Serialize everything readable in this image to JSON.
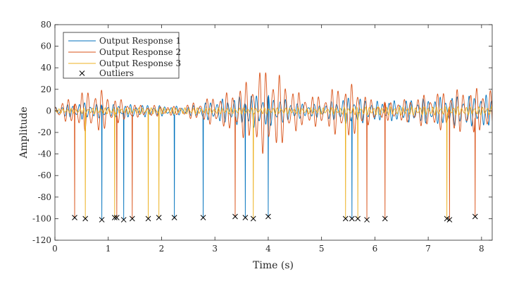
{
  "chart_data": {
    "type": "line",
    "title": "",
    "xlabel": "Time (s)",
    "ylabel": "Amplitude",
    "xlim": [
      0,
      8.2
    ],
    "ylim": [
      -120,
      80
    ],
    "xticks": [
      0,
      1,
      2,
      3,
      4,
      5,
      6,
      7,
      8
    ],
    "yticks": [
      -120,
      -100,
      -80,
      -60,
      -40,
      -20,
      0,
      20,
      40,
      60,
      80
    ],
    "xtick_labels": [
      "0",
      "1",
      "2",
      "3",
      "4",
      "5",
      "6",
      "7",
      "8"
    ],
    "ytick_labels": [
      "-120",
      "-100",
      "-80",
      "-60",
      "-40",
      "-20",
      "0",
      "20",
      "40",
      "60",
      "80"
    ],
    "grid": false,
    "legend_position": "top-left",
    "series": [
      {
        "name": "Output Response 1",
        "color": "#0072BD",
        "envelope": {
          "t": [
            0,
            0.5,
            1.0,
            1.5,
            2.0,
            2.5,
            3.0,
            3.5,
            3.8,
            4.0,
            4.3,
            4.6,
            5.0,
            5.4,
            5.6,
            6.0,
            6.5,
            7.0,
            7.5,
            8.2
          ],
          "amp": [
            4,
            8,
            6,
            6,
            5,
            4,
            10,
            14,
            16,
            15,
            11,
            7,
            6,
            12,
            13,
            9,
            10,
            12,
            14,
            15
          ]
        },
        "frequency_hz": 9.3,
        "phase": 0.3
      },
      {
        "name": "Output Response 2",
        "color": "#D95319",
        "envelope": {
          "t": [
            0,
            0.3,
            0.5,
            0.8,
            1.0,
            1.5,
            2.0,
            2.3,
            2.6,
            3.0,
            3.3,
            3.6,
            3.8,
            4.0,
            4.3,
            4.6,
            5.0,
            5.3,
            5.6,
            6.0,
            6.5,
            7.0,
            7.5,
            8.2
          ],
          "amp": [
            6,
            12,
            18,
            22,
            15,
            6,
            5,
            4,
            8,
            14,
            18,
            28,
            38,
            42,
            30,
            16,
            14,
            24,
            25,
            8,
            10,
            16,
            20,
            22
          ]
        },
        "frequency_hz": 8.1,
        "phase": 1.1
      },
      {
        "name": "Output Response 3",
        "color": "#EDB120",
        "envelope": {
          "t": [
            0,
            1.0,
            2.0,
            3.0,
            4.0,
            5.0,
            6.0,
            7.0,
            8.2
          ],
          "amp": [
            2,
            3,
            3,
            3,
            3,
            3,
            4,
            4,
            4
          ]
        },
        "frequency_hz": 12.7,
        "phase": 2.0
      }
    ],
    "outliers": {
      "name": "Outliers",
      "marker": "x",
      "color": "#000000",
      "points": [
        {
          "t": 0.37,
          "value": -99,
          "series": "Output Response 2"
        },
        {
          "t": 0.57,
          "value": -100,
          "series": "Output Response 3"
        },
        {
          "t": 0.88,
          "value": -101,
          "series": "Output Response 1"
        },
        {
          "t": 1.12,
          "value": -99,
          "series": "Output Response 3"
        },
        {
          "t": 1.16,
          "value": -99,
          "series": "Output Response 2"
        },
        {
          "t": 1.29,
          "value": -101,
          "series": "Output Response 1"
        },
        {
          "t": 1.45,
          "value": -100,
          "series": "Output Response 2"
        },
        {
          "t": 1.75,
          "value": -100,
          "series": "Output Response 3"
        },
        {
          "t": 1.95,
          "value": -99,
          "series": "Output Response 3"
        },
        {
          "t": 2.24,
          "value": -99,
          "series": "Output Response 1"
        },
        {
          "t": 2.78,
          "value": -99,
          "series": "Output Response 1"
        },
        {
          "t": 3.38,
          "value": -98,
          "series": "Output Response 2"
        },
        {
          "t": 3.57,
          "value": -99,
          "series": "Output Response 1"
        },
        {
          "t": 3.72,
          "value": -100,
          "series": "Output Response 3"
        },
        {
          "t": 4.0,
          "value": -98,
          "series": "Output Response 1"
        },
        {
          "t": 5.45,
          "value": -100,
          "series": "Output Response 3"
        },
        {
          "t": 5.57,
          "value": -100,
          "series": "Output Response 1"
        },
        {
          "t": 5.68,
          "value": -100,
          "series": "Output Response 3"
        },
        {
          "t": 5.85,
          "value": -101,
          "series": "Output Response 2"
        },
        {
          "t": 6.19,
          "value": -100,
          "series": "Output Response 2"
        },
        {
          "t": 7.35,
          "value": -100,
          "series": "Output Response 3"
        },
        {
          "t": 7.4,
          "value": -101,
          "series": "Output Response 2"
        },
        {
          "t": 7.88,
          "value": -98,
          "series": "Output Response 2"
        }
      ]
    }
  }
}
